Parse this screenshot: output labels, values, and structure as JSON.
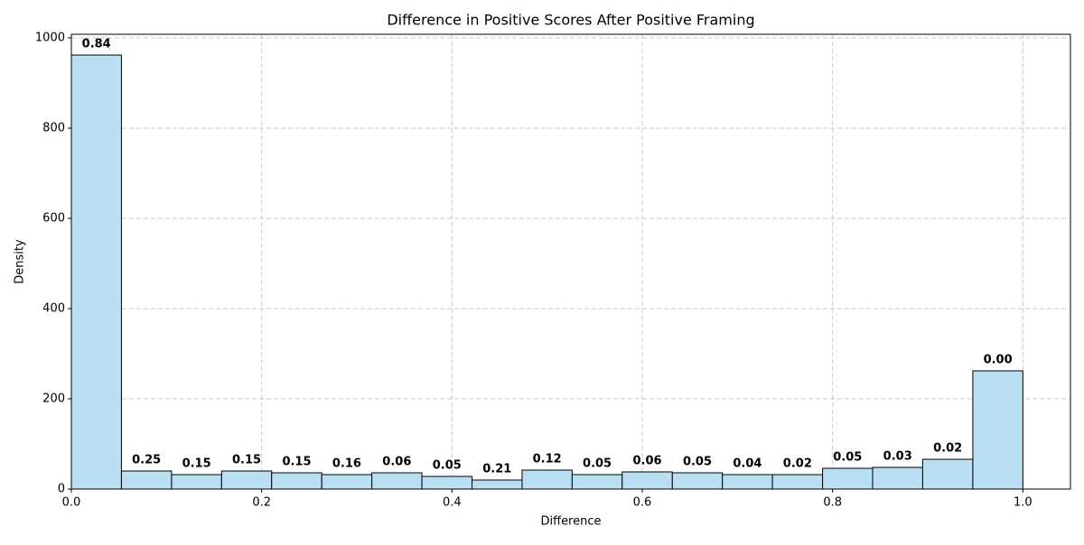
{
  "chart_data": {
    "type": "histogram",
    "title": "Difference in Positive Scores After Positive Framing",
    "xlabel": "Difference",
    "ylabel": "Density",
    "bins": [
      0,
      0.0526,
      0.1053,
      0.1579,
      0.2105,
      0.2632,
      0.3158,
      0.3684,
      0.4211,
      0.4737,
      0.5263,
      0.5789,
      0.6316,
      0.6842,
      0.7368,
      0.7895,
      0.8421,
      0.8947,
      0.9474,
      1
    ],
    "values": [
      962,
      40,
      32,
      40,
      36,
      32,
      36,
      28,
      20,
      42,
      32,
      38,
      36,
      32,
      32,
      46,
      48,
      66,
      262
    ],
    "bar_annotations": [
      "0.84",
      "0.25",
      "0.15",
      "0.15",
      "0.15",
      "0.16",
      "0.06",
      "0.05",
      "0.21",
      "0.12",
      "0.05",
      "0.06",
      "0.05",
      "0.04",
      "0.02",
      "0.05",
      "0.03",
      "0.02",
      "0.00"
    ],
    "color": "#b8e0f2",
    "edgecolor": "#000000",
    "xlim": [
      0,
      1.05
    ],
    "ylim": [
      0,
      1008
    ],
    "xticks": [
      {
        "value": 0,
        "label": "0.0"
      },
      {
        "value": 0.2,
        "label": "0.2"
      },
      {
        "value": 0.4,
        "label": "0.4"
      },
      {
        "value": 0.6,
        "label": "0.6"
      },
      {
        "value": 0.8,
        "label": "0.8"
      },
      {
        "value": 1,
        "label": "1.0"
      }
    ],
    "yticks": [
      0,
      200,
      400,
      600,
      800,
      1000
    ],
    "grid": true
  }
}
